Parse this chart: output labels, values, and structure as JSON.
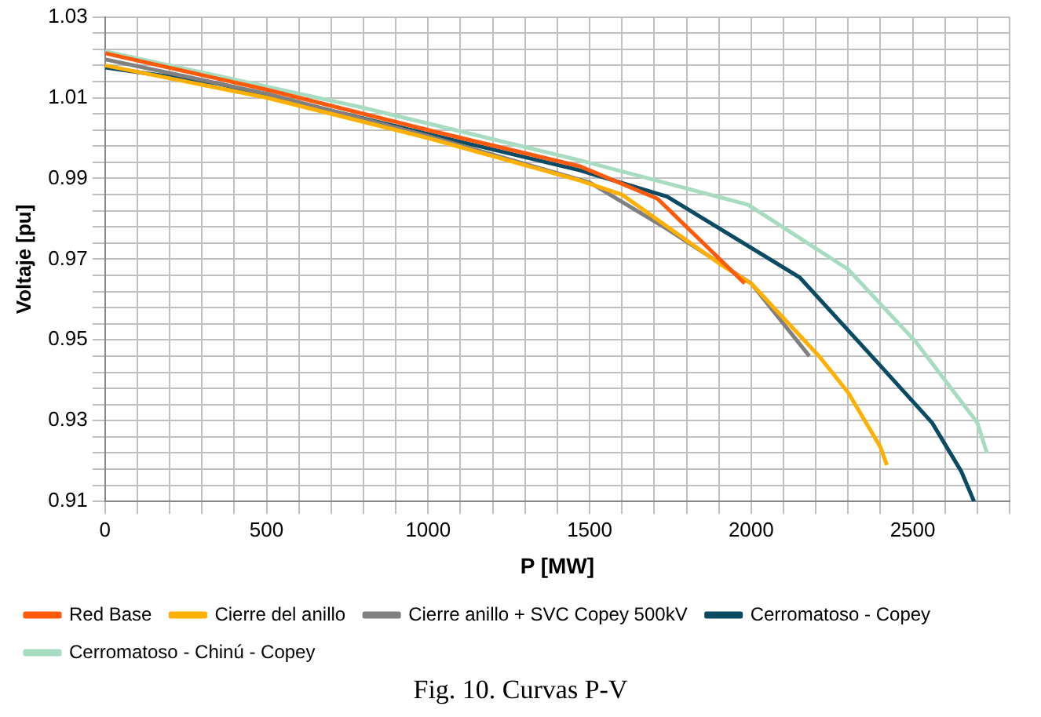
{
  "chart_data": {
    "type": "line",
    "xlabel": "P [MW]",
    "ylabel": "Voltaje [pu]",
    "annotations": [
      "Fig. 10. Curvas P-V"
    ],
    "xlim": [
      0,
      2800
    ],
    "ylim": [
      0.91,
      1.03
    ],
    "xticks": [
      0,
      {
        "value": 100,
        "label": null
      },
      {
        "value": 200,
        "label": null
      },
      {
        "value": 300,
        "label": null
      },
      {
        "value": 400,
        "label": null
      },
      500,
      {
        "value": 600,
        "label": null
      },
      {
        "value": 700,
        "label": null
      },
      {
        "value": 800,
        "label": null
      },
      {
        "value": 900,
        "label": null
      },
      1000,
      {
        "value": 1100,
        "label": null
      },
      {
        "value": 1200,
        "label": null
      },
      {
        "value": 1300,
        "label": null
      },
      {
        "value": 1400,
        "label": null
      },
      1500,
      {
        "value": 1600,
        "label": null
      },
      {
        "value": 1700,
        "label": null
      },
      {
        "value": 1800,
        "label": null
      },
      {
        "value": 1900,
        "label": null
      },
      2000,
      {
        "value": 2100,
        "label": null
      },
      {
        "value": 2200,
        "label": null
      },
      {
        "value": 2300,
        "label": null
      },
      {
        "value": 2400,
        "label": null
      },
      2500,
      {
        "value": 2600,
        "label": null
      },
      {
        "value": 2700,
        "label": null
      },
      {
        "value": 2800,
        "label": null
      }
    ],
    "yticks": [
      0.91,
      {
        "value": 0.914,
        "label": null
      },
      {
        "value": 0.918,
        "label": null
      },
      {
        "value": 0.922,
        "label": null
      },
      {
        "value": 0.926,
        "label": null
      },
      0.93,
      {
        "value": 0.934,
        "label": null
      },
      {
        "value": 0.938,
        "label": null
      },
      {
        "value": 0.942,
        "label": null
      },
      {
        "value": 0.946,
        "label": null
      },
      0.95,
      {
        "value": 0.954,
        "label": null
      },
      {
        "value": 0.958,
        "label": null
      },
      {
        "value": 0.962,
        "label": null
      },
      {
        "value": 0.966,
        "label": null
      },
      0.97,
      {
        "value": 0.974,
        "label": null
      },
      {
        "value": 0.978,
        "label": null
      },
      {
        "value": 0.982,
        "label": null
      },
      {
        "value": 0.986,
        "label": null
      },
      0.99,
      {
        "value": 0.994,
        "label": null
      },
      {
        "value": 0.998,
        "label": null
      },
      {
        "value": 1.002,
        "label": null
      },
      {
        "value": 1.006,
        "label": null
      },
      1.01,
      {
        "value": 1.014,
        "label": null
      },
      {
        "value": 1.018,
        "label": null
      },
      {
        "value": 1.022,
        "label": null
      },
      {
        "value": 1.026,
        "label": null
      },
      1.03
    ],
    "grid": true,
    "legend": "bottom",
    "marker": "none",
    "line_style": "solid",
    "series": [
      {
        "name": "Red Base",
        "color": "#ff5a0a",
        "x": [
          0,
          500,
          1000,
          1470,
          1710,
          1980
        ],
        "values": [
          1.021,
          1.012,
          1.002,
          0.993,
          0.985,
          0.964
        ]
      },
      {
        "name": "Cierre del anillo",
        "color": "#ffb000",
        "x": [
          0,
          500,
          1000,
          1470,
          1600,
          1900,
          2000,
          2210,
          2300,
          2400,
          2420
        ],
        "values": [
          1.018,
          1.01,
          1.0,
          0.9895,
          0.986,
          0.969,
          0.964,
          0.946,
          0.937,
          0.9235,
          0.919
        ]
      },
      {
        "name": "Cierre anillo + SVC Copey 500kV",
        "color": "#808080",
        "x": [
          0,
          500,
          1000,
          1500,
          1740,
          2000,
          2180
        ],
        "values": [
          1.0195,
          1.011,
          1.0005,
          0.989,
          0.9775,
          0.964,
          0.946
        ]
      },
      {
        "name": "Cerromatoso - Copey",
        "color": "#0b4a63",
        "x": [
          0,
          350,
          1000,
          1470,
          1740,
          2150,
          2390,
          2560,
          2650,
          2690
        ],
        "values": [
          1.0175,
          1.0135,
          1.001,
          0.992,
          0.9855,
          0.9655,
          0.9445,
          0.9295,
          0.9175,
          0.91
        ]
      },
      {
        "name": "Cerromatoso - Chinú - Copey",
        "color": "#a8dcc0",
        "x": [
          0,
          800,
          1470,
          1990,
          2300,
          2510,
          2700,
          2730
        ],
        "values": [
          1.0215,
          1.0075,
          0.9945,
          0.9835,
          0.9675,
          0.9495,
          0.9295,
          0.922
        ]
      }
    ]
  }
}
